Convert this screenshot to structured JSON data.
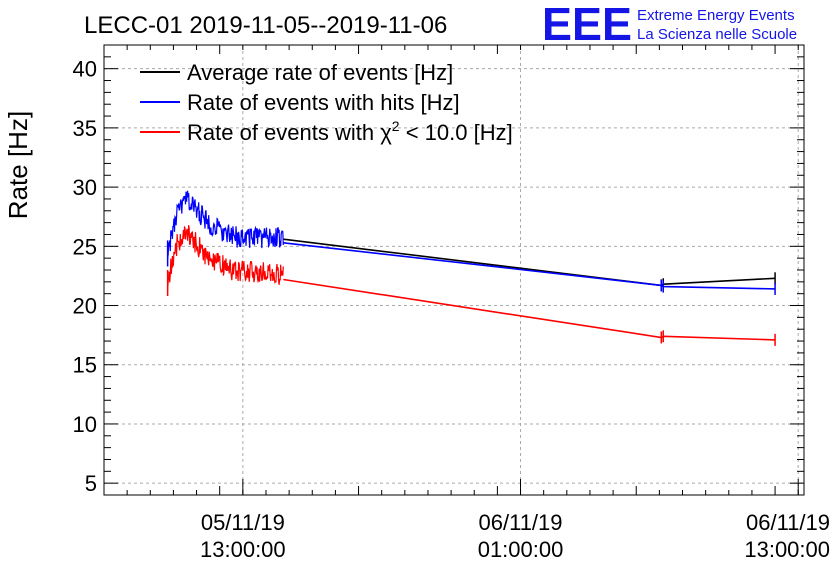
{
  "chart_data": {
    "type": "line",
    "title": "LECC-01 2019-11-05--2019-11-06",
    "ylabel": "Rate [Hz]",
    "xlabel": "",
    "ylim": [
      4,
      42
    ],
    "yticks": [
      5,
      10,
      15,
      20,
      25,
      30,
      35,
      40
    ],
    "xlim": [
      "2019-11-05T07:00:00",
      "2019-11-06T13:15:00"
    ],
    "xticks": [
      {
        "line1": "05/11/19",
        "line2": "13:00:00",
        "t": "2019-11-05T13:00:00"
      },
      {
        "line1": "06/11/19",
        "line2": "01:00:00",
        "t": "2019-11-06T01:00:00"
      },
      {
        "line1": "06/11/19",
        "line2": "13:00:00",
        "t": "2019-11-06T13:00:00"
      }
    ],
    "grid": true,
    "legend_position": "top-left",
    "series": [
      {
        "name": "Average rate of events [Hz]",
        "color": "#000000",
        "x": [
          "2019-11-05T14:45:00",
          "2019-11-06T07:05:00",
          "2019-11-06T07:10:00",
          "2019-11-06T12:00:00"
        ],
        "y": [
          25.6,
          21.7,
          21.8,
          22.3
        ]
      },
      {
        "name": "Rate of events with hits [Hz]",
        "color": "#0000ff",
        "noisy_segment": {
          "start": "2019-11-05T09:45:00",
          "end": "2019-11-05T14:45:00",
          "anchors_x": [
            "2019-11-05T09:45:00",
            "2019-11-05T10:10:00",
            "2019-11-05T10:35:00",
            "2019-11-05T11:30:00",
            "2019-11-05T12:30:00",
            "2019-11-05T14:45:00"
          ],
          "anchors_y": [
            24.5,
            27.8,
            29.0,
            27.0,
            25.8,
            25.7
          ],
          "noise_amplitude": 0.9
        },
        "x": [
          "2019-11-05T14:45:00",
          "2019-11-06T07:05:00",
          "2019-11-06T07:10:00",
          "2019-11-06T12:00:00"
        ],
        "y": [
          25.3,
          21.7,
          21.6,
          21.4
        ]
      },
      {
        "name": "Rate of events with χ² < 10.0 [Hz]",
        "color": "#ff0000",
        "noisy_segment": {
          "start": "2019-11-05T09:45:00",
          "end": "2019-11-05T14:45:00",
          "anchors_x": [
            "2019-11-05T09:45:00",
            "2019-11-05T10:10:00",
            "2019-11-05T10:35:00",
            "2019-11-05T11:30:00",
            "2019-11-05T12:30:00",
            "2019-11-05T14:45:00"
          ],
          "anchors_y": [
            22.0,
            25.3,
            26.2,
            24.0,
            23.0,
            22.6
          ],
          "noise_amplitude": 0.9
        },
        "x": [
          "2019-11-05T14:45:00",
          "2019-11-06T07:05:00",
          "2019-11-06T07:10:00",
          "2019-11-06T12:00:00"
        ],
        "y": [
          22.2,
          17.3,
          17.4,
          17.1
        ]
      }
    ]
  },
  "legend": {
    "items": [
      {
        "text": "Average rate of events [Hz]",
        "color": "#000000"
      },
      {
        "text": "Rate of events with hits [Hz]",
        "color": "#0000ff"
      },
      {
        "text_prefix": "Rate of events with ",
        "chi": "χ",
        "sup": "2",
        "text_suffix": " < 10.0 [Hz]",
        "color": "#ff0000"
      }
    ]
  },
  "logo": {
    "letters": "EEE",
    "line1": "Extreme Energy Events",
    "line2": "La Scienza nelle Scuole",
    "color": "#1515e6"
  }
}
